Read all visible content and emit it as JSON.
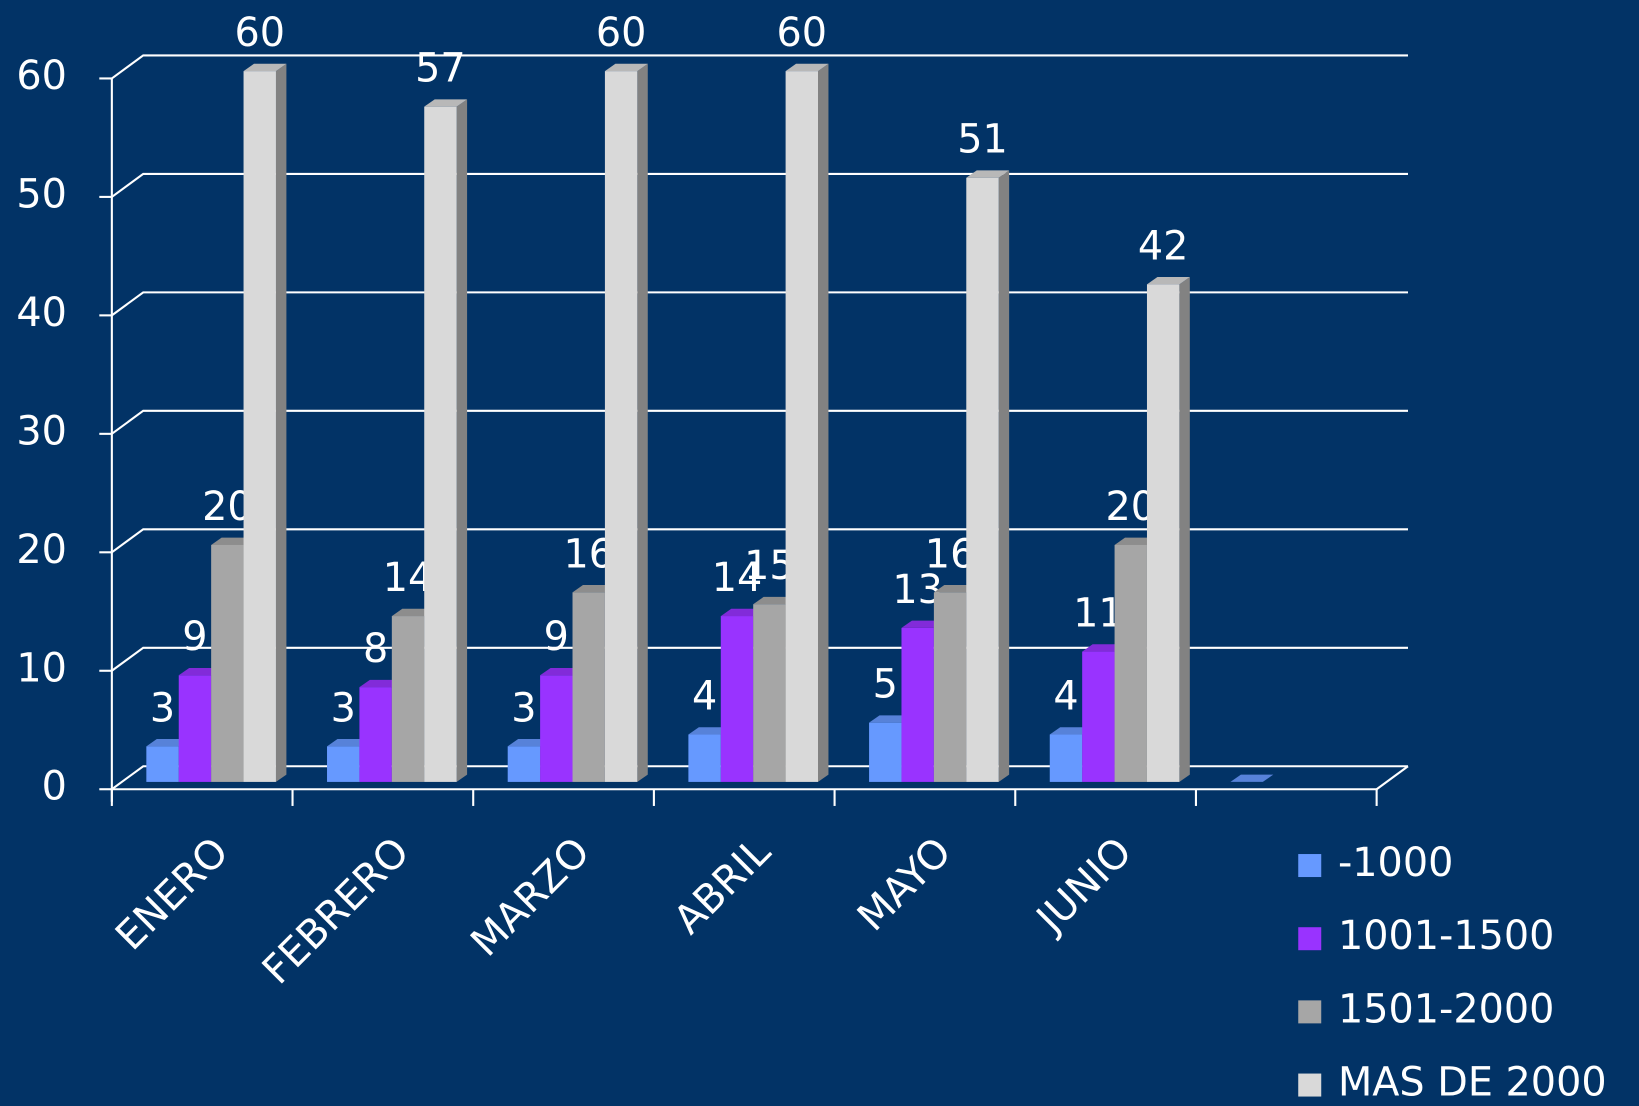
{
  "chart_data": {
    "type": "bar3d",
    "categories": [
      "ENERO",
      "FEBRERO",
      "MARZO",
      "ABRIL",
      "MAYO",
      "JUNIO",
      null
    ],
    "series": [
      {
        "name": "-1000",
        "color": "#6699ff",
        "values": [
          3,
          3,
          3,
          4,
          5,
          4,
          0
        ]
      },
      {
        "name": "1001-1500",
        "color": "#9933ff",
        "values": [
          9,
          8,
          9,
          14,
          13,
          11,
          null
        ]
      },
      {
        "name": "1501-2000",
        "color": "#a6a6a6",
        "values": [
          20,
          14,
          16,
          15,
          16,
          20,
          null
        ]
      },
      {
        "name": "MAS DE 2000",
        "color": "#d9d9d9",
        "values": [
          60,
          57,
          60,
          60,
          51,
          42,
          null
        ]
      }
    ],
    "ylim": [
      0,
      60
    ],
    "yticks": [
      0,
      10,
      20,
      30,
      40,
      50,
      60
    ],
    "grid": true,
    "legend": "bottom-right"
  }
}
